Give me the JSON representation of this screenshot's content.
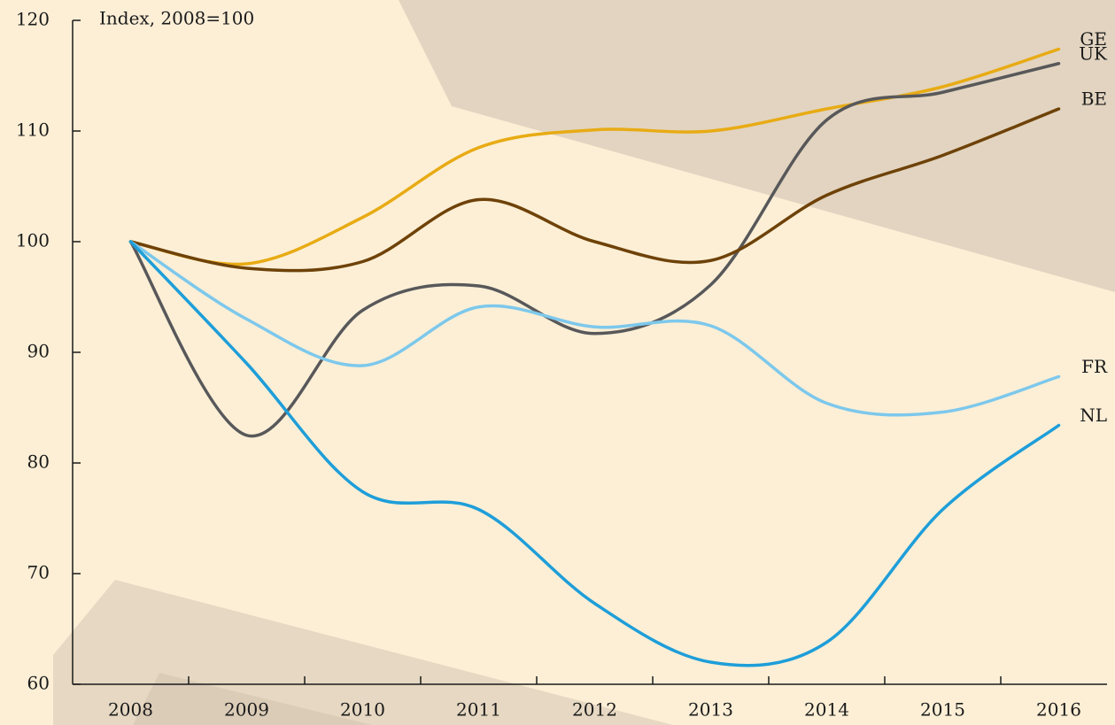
{
  "chart_data": {
    "type": "line",
    "subtitle": "Index, 2008=100",
    "categories": [
      "2008",
      "2009",
      "2010",
      "2011",
      "2012",
      "2013",
      "2014",
      "2015",
      "2016"
    ],
    "ylim": [
      60,
      120
    ],
    "yticks": [
      60,
      70,
      80,
      90,
      100,
      110,
      120
    ],
    "series": [
      {
        "name": "GE",
        "color": "#e8ab14",
        "values": [
          100,
          98,
          102.2,
          108.5,
          110.1,
          110,
          112,
          114,
          117.4
        ]
      },
      {
        "name": "UK",
        "color": "#58585a",
        "values": [
          100,
          82.5,
          93.8,
          96,
          91.7,
          96.1,
          111,
          113.5,
          116.1
        ]
      },
      {
        "name": "BE",
        "color": "#6e4208",
        "values": [
          100,
          97.6,
          98.2,
          103.8,
          100,
          98.3,
          104.2,
          107.8,
          112
        ]
      },
      {
        "name": "FR",
        "color": "#7dc8ec",
        "values": [
          100,
          93,
          88.8,
          94.1,
          92.3,
          92.4,
          85.4,
          84.6,
          87.8
        ]
      },
      {
        "name": "NL",
        "color": "#1e9ed9",
        "values": [
          100,
          89,
          77.4,
          75.8,
          67.3,
          62,
          63.8,
          75.8,
          83.4
        ]
      }
    ]
  }
}
